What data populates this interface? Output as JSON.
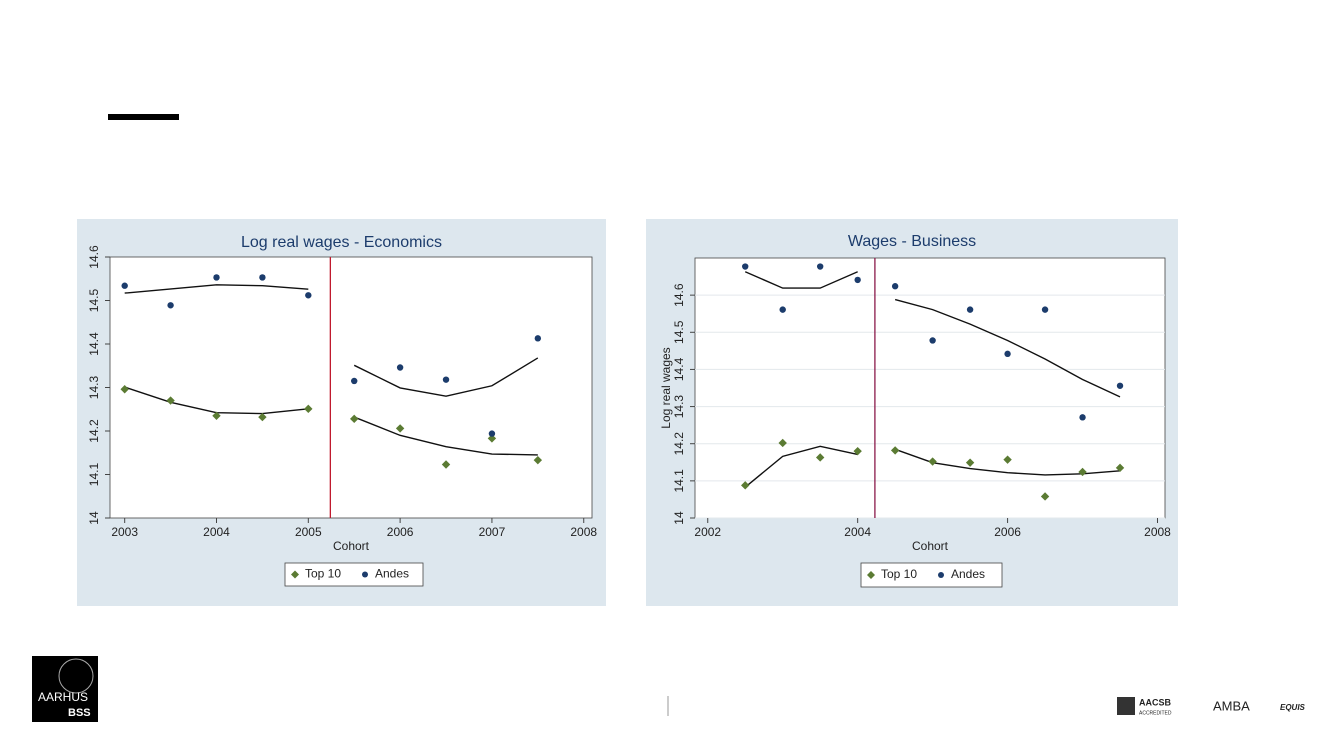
{
  "chart_data": [
    {
      "type": "scatter",
      "title": "Log real wages - Economics",
      "x_label": "Cohort",
      "x": [
        2003,
        2003.5,
        2004,
        2004.5,
        2005,
        2005.5,
        2006,
        2006.5,
        2007,
        2007.5
      ],
      "series": [
        {
          "name": "Top 10",
          "color": "#5b7b33",
          "marker": "diamond",
          "values": [
            14.296,
            14.27,
            14.235,
            14.232,
            14.251,
            14.228,
            14.206,
            14.123,
            14.183,
            14.133
          ]
        },
        {
          "name": "Andes",
          "color": "#1c3c6c",
          "marker": "circle",
          "values": [
            14.534,
            14.489,
            14.553,
            14.553,
            14.512,
            14.315,
            14.346,
            14.318,
            14.194,
            14.413
          ]
        }
      ],
      "fits": [
        {
          "x": [
            2003,
            2004,
            2004.5,
            2005
          ],
          "values": [
            14.517,
            14.536,
            14.534,
            14.526
          ]
        },
        {
          "x": [
            2005.5,
            2006,
            2006.5,
            2007,
            2007.5
          ],
          "values": [
            14.351,
            14.299,
            14.28,
            14.304,
            14.368
          ]
        },
        {
          "x": [
            2003,
            2003.5,
            2004,
            2004.5,
            2005
          ],
          "values": [
            14.301,
            14.266,
            14.242,
            14.24,
            14.251
          ]
        },
        {
          "x": [
            2005.5,
            2006,
            2006.5,
            2007,
            2007.5
          ],
          "values": [
            14.232,
            14.19,
            14.164,
            14.147,
            14.145
          ]
        }
      ],
      "vline": 2005.24,
      "vline_color": "#c0182c",
      "xlim": [
        2002.84,
        2008.09
      ],
      "xticks": [
        2003,
        2004,
        2005,
        2006,
        2007,
        2008
      ],
      "ylim": [
        14,
        14.6
      ],
      "yticks": [
        14,
        14.1,
        14.2,
        14.3,
        14.4,
        14.5,
        14.6
      ],
      "grid": false
    },
    {
      "type": "scatter",
      "title": "Wages - Business",
      "x_label": "Cohort",
      "y_label": "Log real wages",
      "x": [
        2002.5,
        2003,
        2003.5,
        2004,
        2004.5,
        2005,
        2005.5,
        2006,
        2006.5,
        2007,
        2007.5
      ],
      "series": [
        {
          "name": "Top 10",
          "color": "#5b7b33",
          "marker": "diamond",
          "values": [
            14.088,
            14.202,
            14.163,
            14.18,
            14.182,
            14.152,
            14.149,
            14.157,
            14.058,
            14.124,
            14.135
          ]
        },
        {
          "name": "Andes",
          "color": "#1c3c6c",
          "marker": "circle",
          "values": [
            14.677,
            14.561,
            14.677,
            14.641,
            14.624,
            14.478,
            14.561,
            14.442,
            14.561,
            14.271,
            14.356
          ]
        }
      ],
      "fits": [
        {
          "x": [
            2002.5,
            2003,
            2003.5,
            2004
          ],
          "values": [
            14.663,
            14.619,
            14.619,
            14.663
          ]
        },
        {
          "x": [
            2004.5,
            2005,
            2005.5,
            2006,
            2006.5,
            2007,
            2007.5
          ],
          "values": [
            14.588,
            14.561,
            14.522,
            14.478,
            14.428,
            14.373,
            14.326
          ]
        },
        {
          "x": [
            2002.5,
            2003,
            2003.5,
            2004
          ],
          "values": [
            14.083,
            14.166,
            14.193,
            14.171
          ]
        },
        {
          "x": [
            2004.5,
            2005,
            2005.5,
            2006,
            2006.5,
            2007,
            2007.5
          ],
          "values": [
            14.185,
            14.149,
            14.133,
            14.122,
            14.116,
            14.119,
            14.127
          ]
        }
      ],
      "vline": 2004.23,
      "vline_color": "#8a1a4a",
      "xlim": [
        2001.83,
        2008.1
      ],
      "xticks": [
        2002,
        2004,
        2006,
        2008
      ],
      "ylim": [
        14,
        14.7
      ],
      "yticks": [
        14,
        14.1,
        14.2,
        14.3,
        14.4,
        14.5,
        14.6
      ],
      "grid": true
    }
  ],
  "footer": {
    "logo": [
      "AARHUS",
      "BSS"
    ],
    "accreditations": [
      "AACSB",
      "ACCREDITED",
      "AMBA",
      "EQUIS"
    ]
  }
}
